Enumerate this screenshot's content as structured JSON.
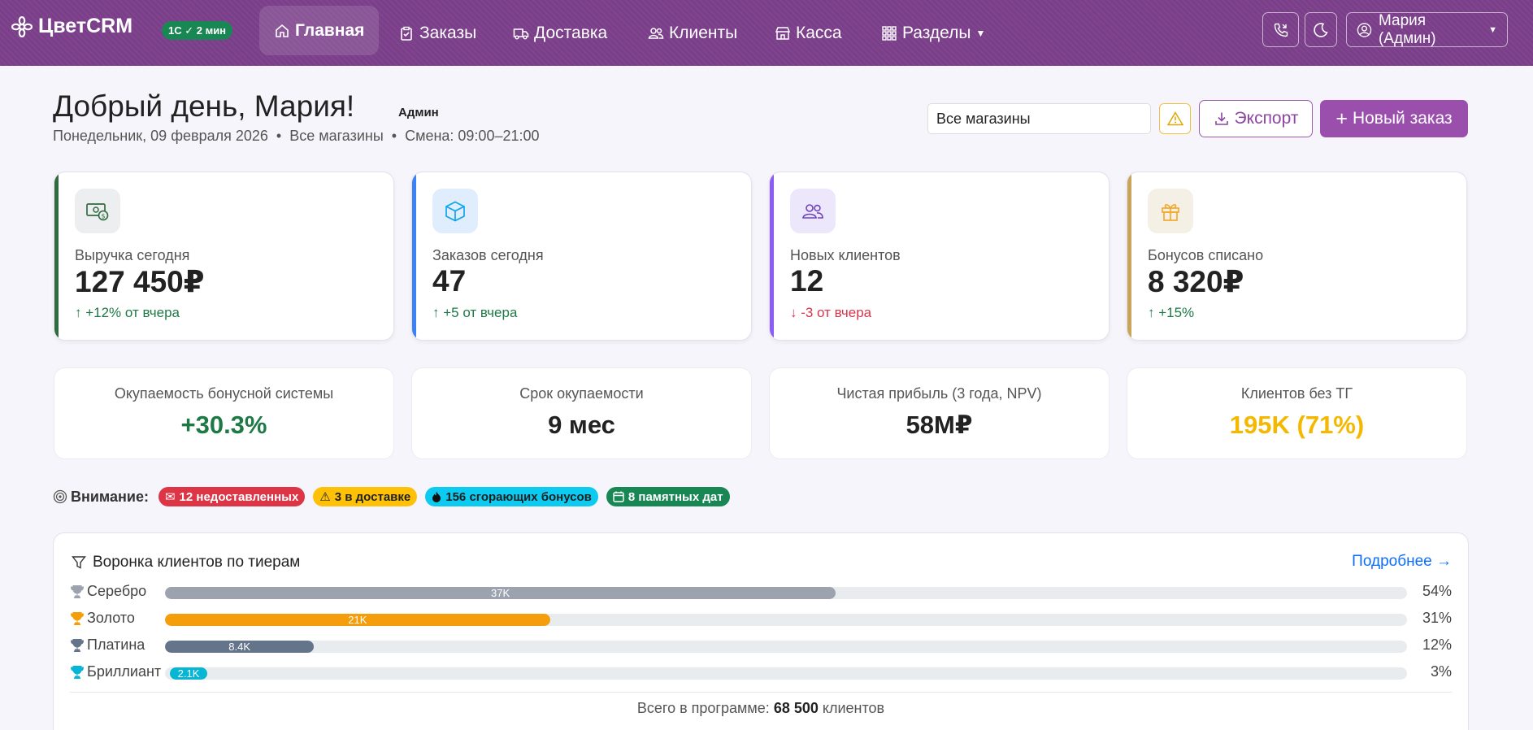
{
  "app": {
    "brand": "ЦветCRM",
    "sync_badge": "1С ✓ 2 мин"
  },
  "nav": {
    "items": [
      {
        "label": "Главная",
        "icon": "home-icon",
        "active": true
      },
      {
        "label": "Заказы",
        "icon": "clipboard-icon"
      },
      {
        "label": "Доставка",
        "icon": "truck-icon"
      },
      {
        "label": "Клиенты",
        "icon": "users-icon"
      },
      {
        "label": "Касса",
        "icon": "shop-icon"
      },
      {
        "label": "Разделы",
        "icon": "grid-icon"
      }
    ],
    "user": "Мария (Админ)"
  },
  "header": {
    "greeting": "Добрый день, Мария!",
    "role": "Админ",
    "subline": "Понедельник, 09 февраля 2026  •  Все магазины  •  Смена: 09:00–21:00",
    "store_select": "Все магазины",
    "export_label": "Экспорт",
    "new_order_label": "Новый заказ"
  },
  "kpis": [
    {
      "label": "Выручка сегодня",
      "value": "127 450₽",
      "delta": "↑ +12% от вчера",
      "trend": "up",
      "accent": "#2f6b3f",
      "icon": "money-icon"
    },
    {
      "label": "Заказов сегодня",
      "value": "47",
      "delta": "↑ +5 от вчера",
      "trend": "up",
      "accent": "#3b82f6",
      "icon": "box-icon"
    },
    {
      "label": "Новых клиентов",
      "value": "12",
      "delta": "↓ -3 от вчера",
      "trend": "down",
      "accent": "#8b5cf6",
      "icon": "users-icon"
    },
    {
      "label": "Бонусов списано",
      "value": "8 320₽",
      "delta": "↑ +15%",
      "trend": "up",
      "accent": "#c9a55a",
      "icon": "gift-icon"
    }
  ],
  "stats": [
    {
      "label": "Окупаемость бонусной системы",
      "value": "+30.3%",
      "color": "#1e7a45"
    },
    {
      "label": "Срок окупаемости",
      "value": "9 мес",
      "color": "#222222"
    },
    {
      "label": "Чистая прибыль (3 года, NPV)",
      "value": "58М₽",
      "color": "#222222"
    },
    {
      "label": "Клиентов без ТГ",
      "value": "195K (71%)",
      "color": "#f5b800"
    }
  ],
  "attention": {
    "title": "Внимание:",
    "pills": [
      {
        "label": "12 недоставленных",
        "bg": "#dc3545",
        "fg": "#ffffff",
        "icon": "envelope-x-icon"
      },
      {
        "label": "3 в доставке",
        "bg": "#ffc107",
        "fg": "#222222",
        "icon": "warning-icon"
      },
      {
        "label": "156 сгорающих бонусов",
        "bg": "#0dcaf0",
        "fg": "#222222",
        "icon": "fire-icon"
      },
      {
        "label": "8 памятных дат",
        "bg": "#198754",
        "fg": "#ffffff",
        "icon": "calendar-icon"
      }
    ]
  },
  "funnel": {
    "title": "Воронка клиентов по тиерам",
    "link": "Подробнее →",
    "tiers": [
      {
        "name": "Серебро",
        "count_label": "37K",
        "percent": 54,
        "percent_label": "54%",
        "color": "#9ca3af",
        "trophy": "#9ca3af"
      },
      {
        "name": "Золото",
        "count_label": "21K",
        "percent": 31,
        "percent_label": "31%",
        "color": "#f59e0b",
        "trophy": "#f59e0b"
      },
      {
        "name": "Платина",
        "count_label": "8.4K",
        "percent": 12,
        "percent_label": "12%",
        "color": "#64748b",
        "trophy": "#64748b"
      },
      {
        "name": "Бриллиант",
        "count_label": "2.1K",
        "percent": 3,
        "percent_label": "3%",
        "color": "#06b6d4",
        "trophy": "#06b6d4"
      }
    ],
    "total_prefix": "Всего в программе:",
    "total_value": "68 500",
    "total_suffix": "клиентов"
  }
}
